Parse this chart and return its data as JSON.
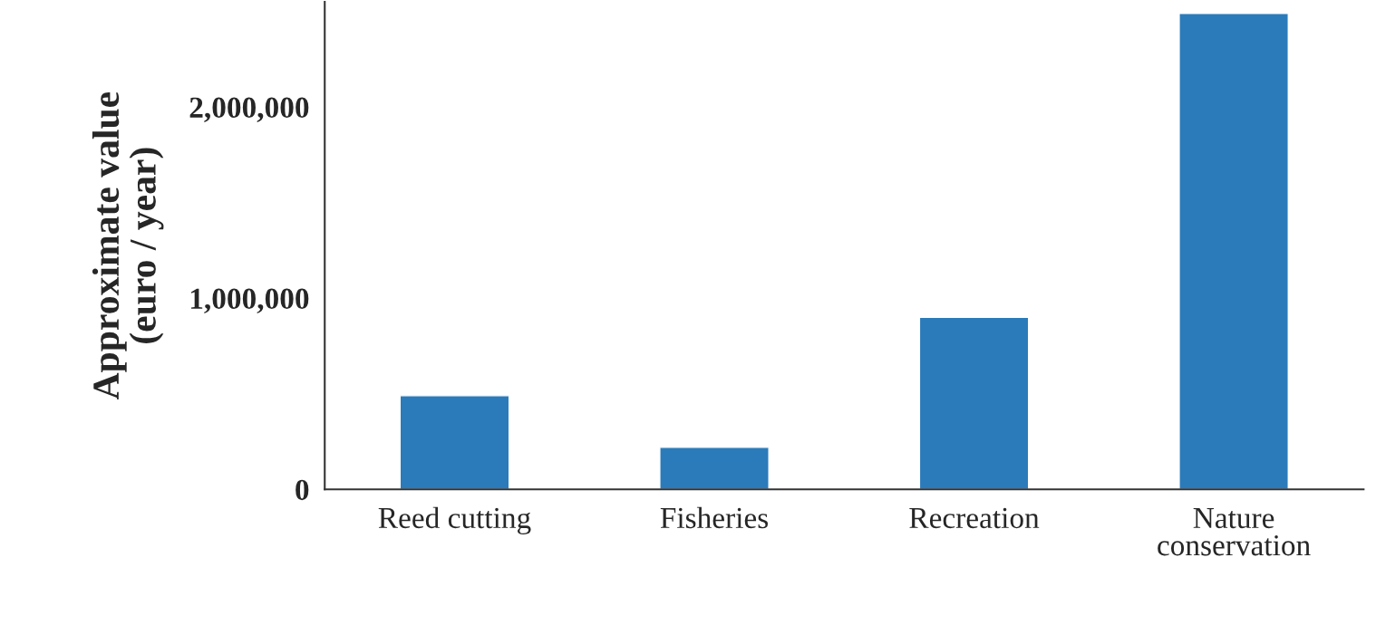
{
  "chart_data": {
    "type": "bar",
    "ylabel": "Approximate value\n(euro / year)",
    "categories": [
      "Reed cutting",
      "Fisheries",
      "Recreation",
      "Nature\nconservation"
    ],
    "values": [
      490000,
      220000,
      900000,
      2490000
    ],
    "color": "#2b7bba",
    "ylim": [
      0,
      2550000
    ],
    "yticks": [
      {
        "value": 0,
        "label": "0"
      },
      {
        "value": 1000000,
        "label": "1,000,000"
      },
      {
        "value": 2000000,
        "label": "2,000,000"
      }
    ],
    "grid": false
  }
}
